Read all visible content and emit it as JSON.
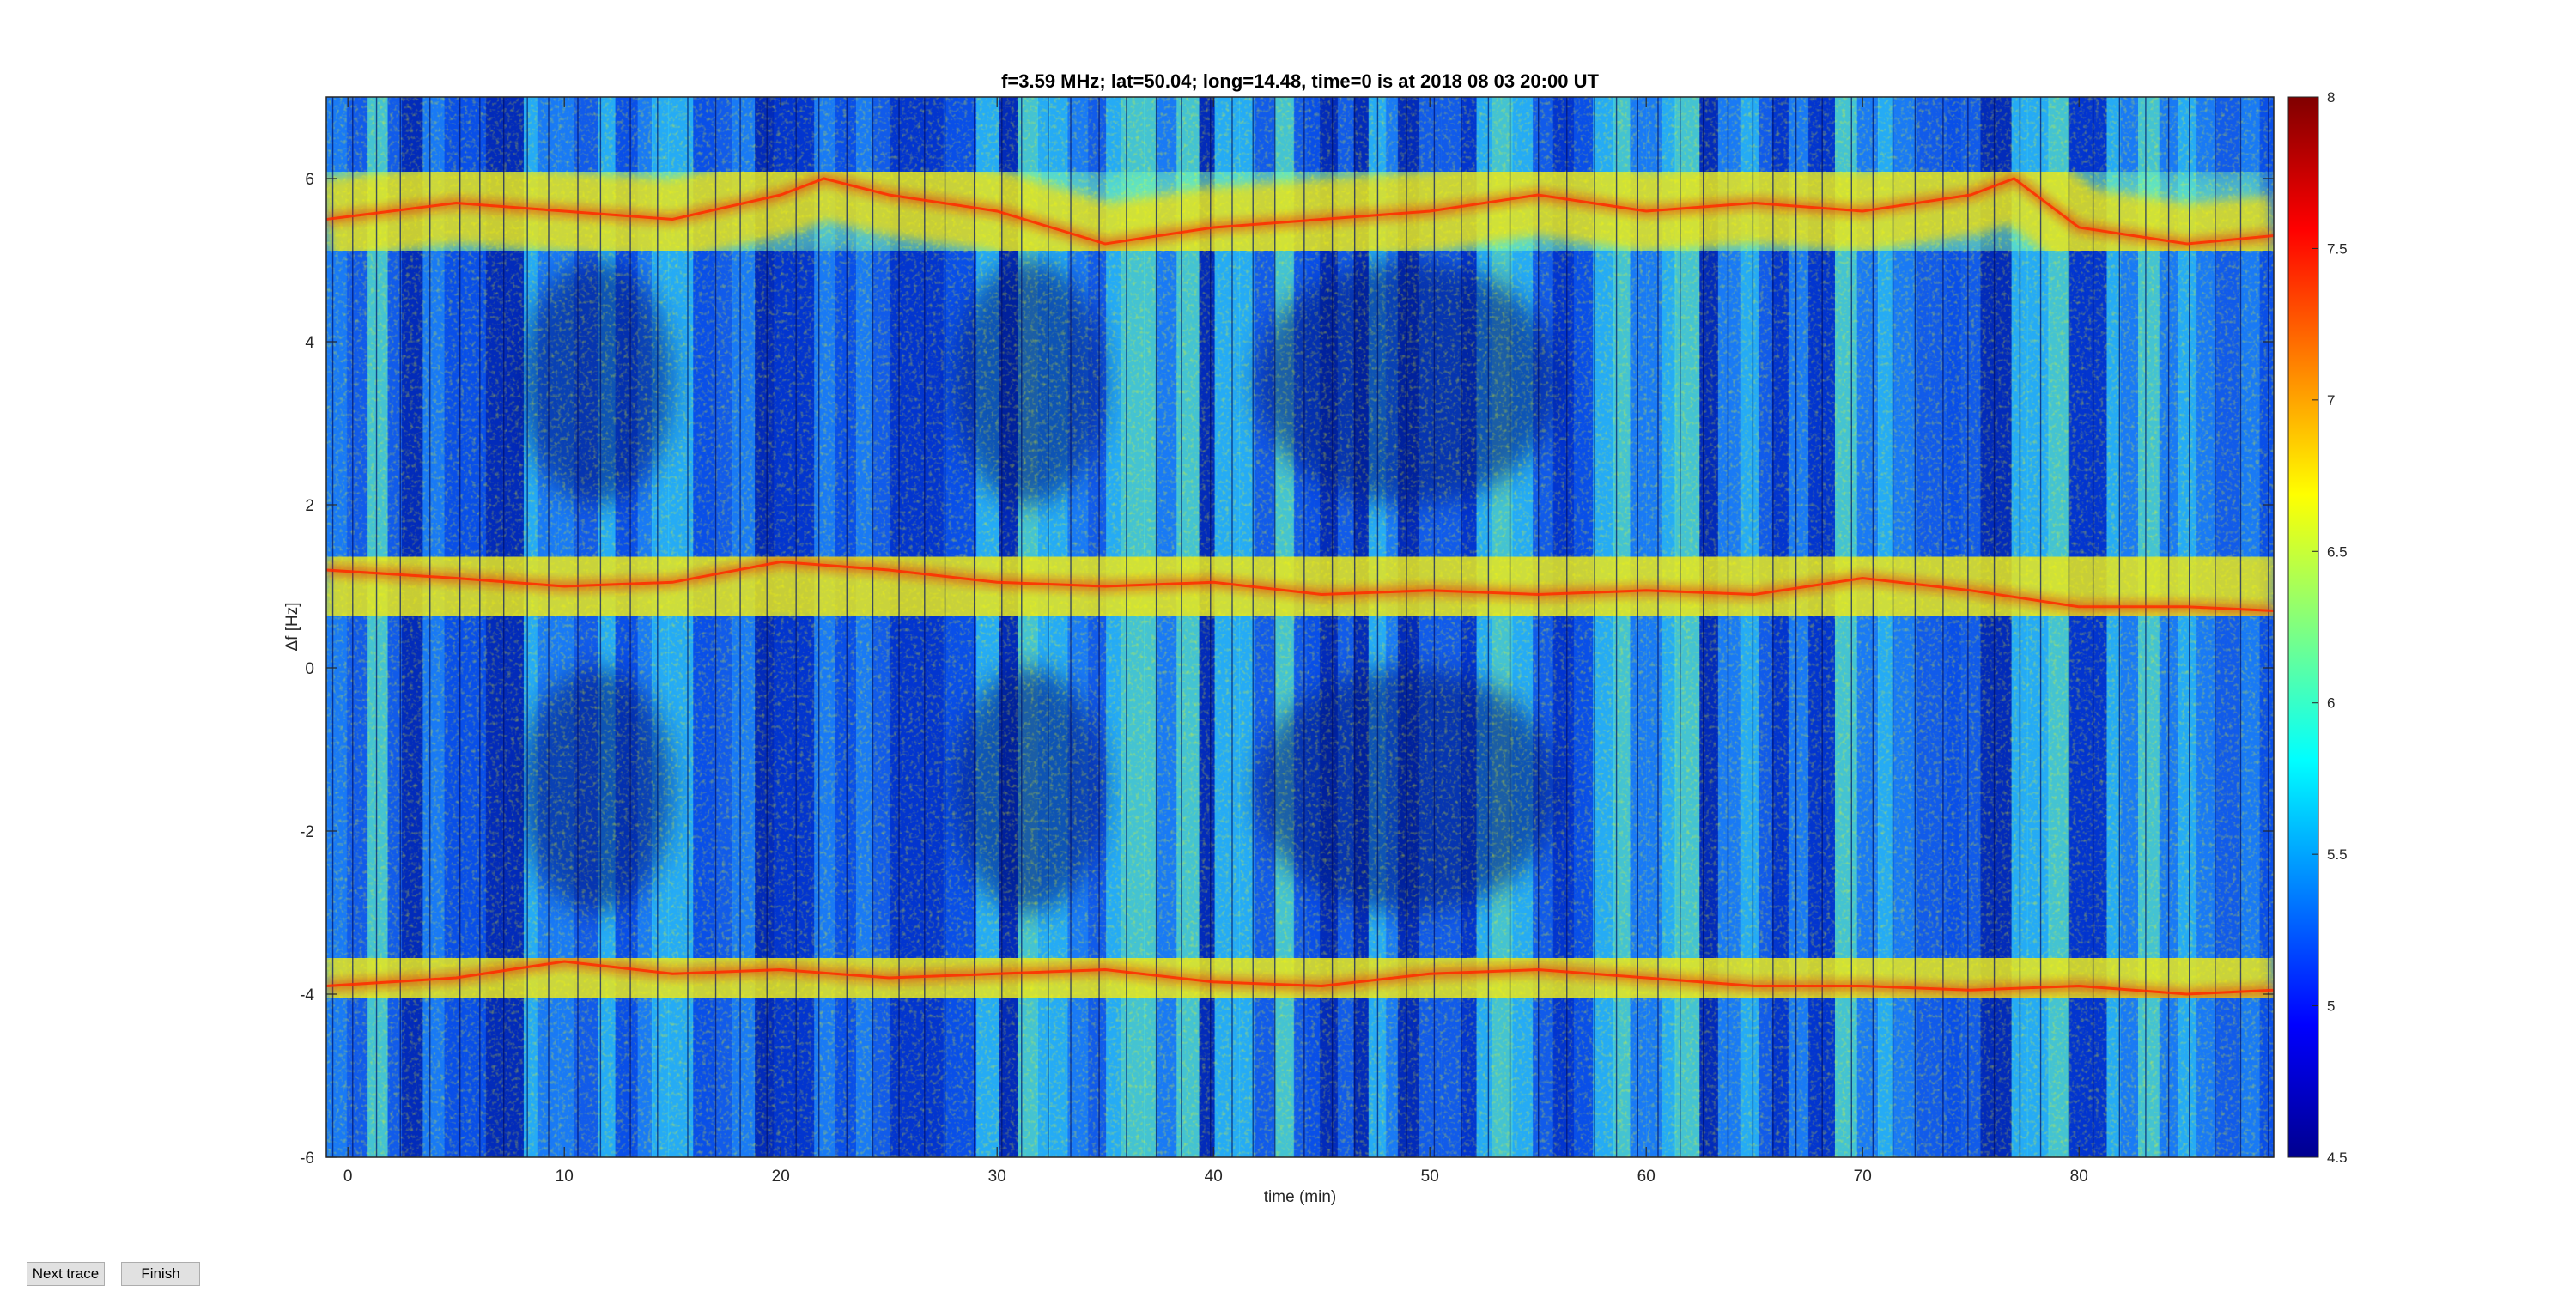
{
  "buttons": {
    "next_trace": "Next trace",
    "finish": "Finish"
  },
  "chart_data": {
    "type": "heatmap",
    "title": "f=3.59 MHz;  lat=50.04; long=14.48, time=0 is at 2018 08 03 20:00 UT",
    "xlabel": "time (min)",
    "ylabel": "Δf [Hz]",
    "xlim": [
      -1,
      89
    ],
    "ylim": [
      -6,
      7
    ],
    "xticks": [
      0,
      10,
      20,
      30,
      40,
      50,
      60,
      70,
      80
    ],
    "yticks": [
      -6,
      -4,
      -2,
      0,
      2,
      4,
      6
    ],
    "colorbar": {
      "range": [
        4.5,
        8
      ],
      "ticks": [
        "4.5",
        "5",
        "5.5",
        "6",
        "6.5",
        "7",
        "7.5",
        "8"
      ]
    },
    "colormap": [
      "#00008f",
      "#0000ff",
      "#0080ff",
      "#00ffff",
      "#80ff80",
      "#ffff00",
      "#ff8000",
      "#ff0000",
      "#800000"
    ],
    "grid": false,
    "traces": [
      {
        "name": "upper",
        "points": [
          [
            -1,
            5.5
          ],
          [
            5,
            5.7
          ],
          [
            10,
            5.6
          ],
          [
            15,
            5.5
          ],
          [
            20,
            5.8
          ],
          [
            22,
            6.0
          ],
          [
            25,
            5.8
          ],
          [
            30,
            5.6
          ],
          [
            35,
            5.2
          ],
          [
            40,
            5.4
          ],
          [
            45,
            5.5
          ],
          [
            50,
            5.6
          ],
          [
            55,
            5.8
          ],
          [
            60,
            5.6
          ],
          [
            65,
            5.7
          ],
          [
            70,
            5.6
          ],
          [
            75,
            5.8
          ],
          [
            77,
            6.0
          ],
          [
            80,
            5.4
          ],
          [
            85,
            5.2
          ],
          [
            89,
            5.3
          ]
        ]
      },
      {
        "name": "middle",
        "points": [
          [
            -1,
            1.2
          ],
          [
            5,
            1.1
          ],
          [
            10,
            1.0
          ],
          [
            15,
            1.05
          ],
          [
            20,
            1.3
          ],
          [
            25,
            1.2
          ],
          [
            30,
            1.05
          ],
          [
            35,
            1.0
          ],
          [
            40,
            1.05
          ],
          [
            45,
            0.9
          ],
          [
            50,
            0.95
          ],
          [
            55,
            0.9
          ],
          [
            60,
            0.95
          ],
          [
            65,
            0.9
          ],
          [
            70,
            1.1
          ],
          [
            75,
            0.95
          ],
          [
            80,
            0.75
          ],
          [
            85,
            0.75
          ],
          [
            89,
            0.7
          ]
        ]
      },
      {
        "name": "lower",
        "points": [
          [
            -1,
            -3.9
          ],
          [
            5,
            -3.8
          ],
          [
            10,
            -3.6
          ],
          [
            15,
            -3.75
          ],
          [
            20,
            -3.7
          ],
          [
            25,
            -3.8
          ],
          [
            30,
            -3.75
          ],
          [
            35,
            -3.7
          ],
          [
            40,
            -3.85
          ],
          [
            45,
            -3.9
          ],
          [
            50,
            -3.75
          ],
          [
            55,
            -3.7
          ],
          [
            60,
            -3.8
          ],
          [
            65,
            -3.9
          ],
          [
            70,
            -3.9
          ],
          [
            75,
            -3.95
          ],
          [
            80,
            -3.9
          ],
          [
            85,
            -4.0
          ],
          [
            89,
            -3.95
          ]
        ]
      }
    ],
    "dark_regions": [
      {
        "x": [
          28,
          35
        ],
        "y": [
          2,
          5
        ]
      },
      {
        "x": [
          28,
          35
        ],
        "y": [
          -3,
          0
        ]
      },
      {
        "x": [
          42,
          56
        ],
        "y": [
          2,
          5
        ]
      },
      {
        "x": [
          42,
          56
        ],
        "y": [
          -3,
          0
        ]
      },
      {
        "x": [
          8,
          15
        ],
        "y": [
          2,
          5
        ]
      },
      {
        "x": [
          8,
          15
        ],
        "y": [
          -3,
          0
        ]
      }
    ]
  }
}
